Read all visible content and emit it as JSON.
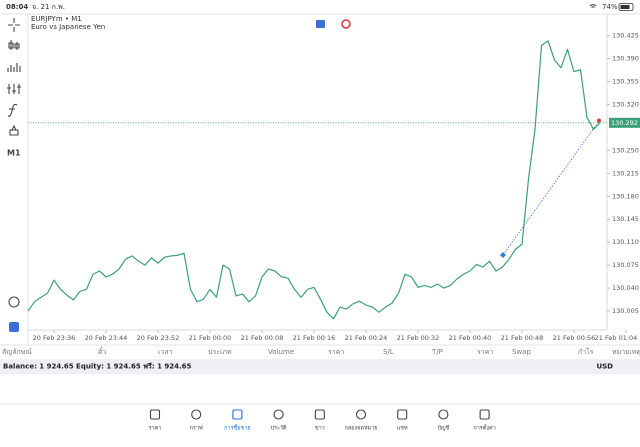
{
  "status_bar": {
    "time": "08:04",
    "date": "จ. 21 ก.พ.",
    "battery": "74%"
  },
  "toolbar": {
    "timeframe": "M1"
  },
  "chart_data": {
    "type": "line",
    "symbol": "EURJPYm • M1",
    "description": "Euro vs Japanese Yen",
    "color": "#3d9f78",
    "categories": [
      null,
      null,
      null,
      null,
      "20 Feb 23:36",
      null,
      null,
      null,
      null,
      null,
      null,
      null,
      "20 Feb 23:44",
      null,
      null,
      null,
      null,
      null,
      null,
      null,
      "20 Feb 23:52",
      null,
      null,
      null,
      null,
      null,
      null,
      null,
      "21 Feb 00:00",
      null,
      null,
      null,
      null,
      null,
      null,
      null,
      "21 Feb 00:08",
      null,
      null,
      null,
      null,
      null,
      null,
      null,
      "21 Feb 00:16",
      null,
      null,
      null,
      null,
      null,
      null,
      null,
      "21 Feb 00:24",
      null,
      null,
      null,
      null,
      null,
      null,
      null,
      "21 Feb 00:32",
      null,
      null,
      null,
      null,
      null,
      null,
      null,
      "21 Feb 00:40",
      null,
      null,
      null,
      null,
      null,
      null,
      null,
      "21 Feb 00:48",
      null,
      null,
      null,
      null,
      null,
      null,
      null,
      "21 Feb 00:56",
      null,
      null,
      null,
      null,
      null,
      null,
      null,
      "21 Feb 01:04"
    ],
    "values": [
      130.005,
      130.019,
      130.026,
      130.032,
      130.052,
      130.038,
      130.029,
      130.022,
      130.035,
      130.038,
      130.061,
      130.066,
      130.057,
      130.061,
      130.069,
      130.084,
      130.089,
      130.081,
      130.075,
      130.086,
      130.078,
      130.087,
      130.089,
      130.09,
      130.093,
      130.038,
      130.019,
      130.023,
      130.038,
      130.026,
      130.075,
      130.069,
      130.028,
      130.031,
      130.019,
      130.028,
      130.057,
      130.069,
      130.066,
      130.057,
      130.055,
      130.038,
      130.026,
      130.038,
      130.041,
      130.023,
      130.003,
      129.993,
      130.011,
      130.008,
      130.016,
      130.02,
      130.014,
      130.011,
      130.003,
      130.011,
      130.017,
      130.032,
      130.061,
      130.057,
      130.041,
      130.044,
      130.041,
      130.046,
      130.04,
      130.044,
      130.054,
      130.061,
      130.066,
      130.076,
      130.072,
      130.081,
      130.066,
      130.072,
      130.084,
      130.099,
      130.107,
      130.206,
      130.282,
      130.41,
      130.417,
      130.388,
      130.376,
      130.404,
      130.37,
      130.373,
      130.3,
      130.282,
      130.292,
      null,
      null,
      null,
      null
    ],
    "current_price": 130.292,
    "ylim": [
      129.976,
      130.458
    ],
    "yticks": [
      130.005,
      {
        "value": 130.04,
        "label": "130.040"
      },
      130.075,
      {
        "value": 130.11,
        "label": "130.110"
      },
      130.145,
      {
        "value": 130.18,
        "label": "130.180"
      },
      130.215,
      {
        "value": 130.25,
        "label": "130.250"
      },
      {
        "value": 130.32,
        "label": "130.320"
      },
      130.355,
      {
        "value": 130.39,
        "label": "130.390"
      },
      130.425
    ]
  },
  "trade_table": {
    "columns": [
      "สัญลักษณ์",
      "ตั๋ว",
      "เวลา",
      "ประเภท",
      "Volume",
      "ราคา",
      "S/L",
      "T/P",
      "ราคา",
      "Swap",
      "กำไร",
      "หมายเหตุ"
    ]
  },
  "account": {
    "summary": "Balance: 1 924.65 Equity: 1 924.65 ฟรี: 1 924.65",
    "currency": "USD"
  },
  "tab_bar": {
    "items": [
      "ราคา",
      "กราฟ",
      "การซื้อขาย",
      "ประวัติ",
      "ข่าว",
      "กล่องจดหมาย",
      "แชท",
      "บัญชี",
      "การตั้งค่า"
    ],
    "active": 2
  }
}
